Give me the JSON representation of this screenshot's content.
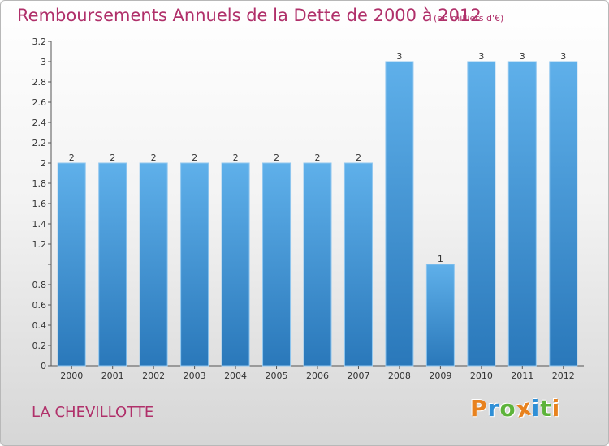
{
  "chart_data": {
    "type": "bar",
    "title": "Remboursements Annuels de la Dette de 2000 à 2012",
    "subtitle": "(en milliers d'€)",
    "categories": [
      "2000",
      "2001",
      "2002",
      "2003",
      "2004",
      "2005",
      "2006",
      "2007",
      "2008",
      "2009",
      "2010",
      "2011",
      "2012"
    ],
    "values": [
      2,
      2,
      2,
      2,
      2,
      2,
      2,
      2,
      3,
      1,
      3,
      3,
      3
    ],
    "data_labels": [
      "2",
      "2",
      "2",
      "2",
      "2",
      "2",
      "2",
      "2",
      "3",
      "1",
      "3",
      "3",
      "3"
    ],
    "ylim": [
      0,
      3.2
    ],
    "y_ticks": [
      0,
      0.2,
      0.4,
      0.6,
      0.8,
      1,
      1.2,
      1.4,
      1.6,
      1.8,
      2,
      2.2,
      2.4,
      2.6,
      2.8,
      3,
      3.2
    ],
    "y_tick_labels": [
      "0",
      "0.2",
      "0.4",
      "0.6",
      "0.8",
      "",
      "1.2",
      "1.4",
      "1.6",
      "1.8",
      "2",
      "2.2",
      "2.4",
      "2.6",
      "2.8",
      "3",
      "3.2"
    ],
    "grid": false,
    "bar_color": "#4a9ede",
    "xlabel": "",
    "ylabel": ""
  },
  "footer": {
    "commune": "LA CHEVILLOTTE",
    "logo_letters": [
      {
        "ch": "P",
        "color": "#e8821e"
      },
      {
        "ch": "r",
        "color": "#2f8fd6"
      },
      {
        "ch": "o",
        "color": "#5db33a"
      },
      {
        "ch": "x",
        "color": "#e8821e"
      },
      {
        "ch": "i",
        "color": "#2f8fd6"
      },
      {
        "ch": "t",
        "color": "#5db33a"
      },
      {
        "ch": "i",
        "color": "#e8821e"
      }
    ]
  },
  "colors": {
    "title": "#b0306a",
    "axis": "#555555"
  }
}
